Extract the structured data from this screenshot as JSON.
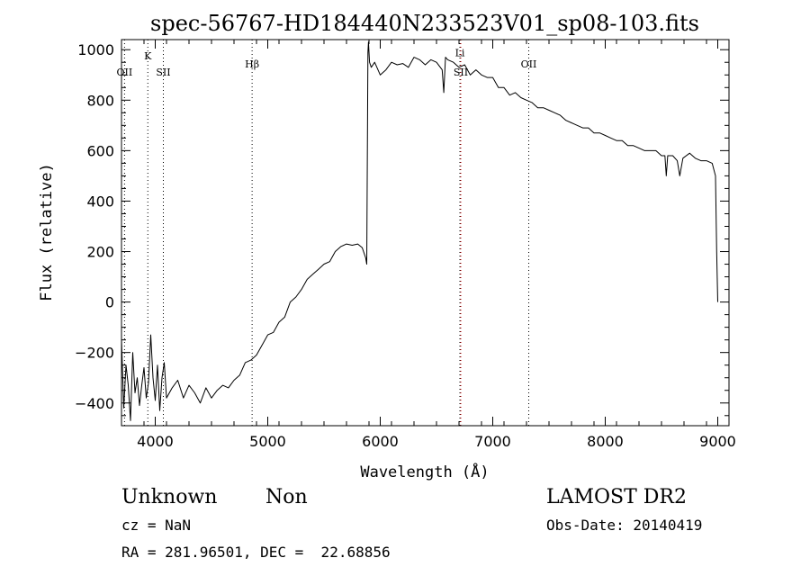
{
  "chart_data": {
    "type": "line",
    "title": "spec-56767-HD184440N233523V01_sp08-103.fits",
    "xlabel": "Wavelength (Å)",
    "ylabel": "Flux (relative)",
    "xlim": [
      3700,
      9100
    ],
    "ylim": [
      -490,
      1040
    ],
    "xticks": [
      4000,
      5000,
      6000,
      7000,
      8000,
      9000
    ],
    "yticks": [
      -400,
      -200,
      0,
      200,
      400,
      600,
      800,
      1000
    ],
    "ytick_labels": [
      "−400",
      "−200",
      "0",
      "200",
      "400",
      "600",
      "800",
      "1000"
    ],
    "grid": false,
    "series": [
      {
        "color": "#000000",
        "x": [
          3700,
          3720,
          3740,
          3760,
          3780,
          3800,
          3820,
          3840,
          3860,
          3880,
          3900,
          3920,
          3940,
          3960,
          3980,
          4000,
          4020,
          4040,
          4060,
          4080,
          4100,
          4150,
          4200,
          4250,
          4300,
          4350,
          4400,
          4450,
          4500,
          4550,
          4600,
          4650,
          4700,
          4750,
          4800,
          4850,
          4900,
          4950,
          5000,
          5050,
          5100,
          5150,
          5200,
          5250,
          5300,
          5350,
          5400,
          5450,
          5500,
          5550,
          5600,
          5650,
          5700,
          5750,
          5800,
          5840,
          5870,
          5880,
          5890,
          5895,
          5905,
          5920,
          5950,
          6000,
          6050,
          6100,
          6150,
          6200,
          6250,
          6300,
          6350,
          6400,
          6450,
          6500,
          6550,
          6565,
          6580,
          6600,
          6650,
          6700,
          6750,
          6800,
          6850,
          6900,
          6950,
          7000,
          7050,
          7100,
          7150,
          7200,
          7250,
          7300,
          7350,
          7400,
          7450,
          7500,
          7550,
          7600,
          7650,
          7700,
          7750,
          7800,
          7850,
          7900,
          7950,
          8000,
          8050,
          8100,
          8150,
          8200,
          8250,
          8300,
          8350,
          8400,
          8450,
          8500,
          8530,
          8542,
          8555,
          8600,
          8640,
          8662,
          8690,
          8750,
          8800,
          8850,
          8900,
          8950,
          8980,
          8990,
          9000
        ],
        "y": [
          -150,
          -420,
          -250,
          -330,
          -470,
          -200,
          -360,
          -300,
          -410,
          -330,
          -260,
          -380,
          -320,
          -130,
          -300,
          -390,
          -250,
          -430,
          -300,
          -240,
          -380,
          -340,
          -310,
          -380,
          -330,
          -360,
          -400,
          -340,
          -380,
          -350,
          -330,
          -340,
          -310,
          -290,
          -240,
          -230,
          -210,
          -170,
          -130,
          -120,
          -80,
          -60,
          0,
          20,
          50,
          90,
          110,
          130,
          150,
          160,
          200,
          220,
          230,
          225,
          230,
          215,
          175,
          150,
          990,
          1030,
          950,
          930,
          950,
          900,
          920,
          950,
          940,
          945,
          930,
          970,
          960,
          940,
          960,
          950,
          920,
          830,
          970,
          960,
          950,
          930,
          940,
          900,
          920,
          900,
          890,
          890,
          850,
          850,
          820,
          830,
          810,
          800,
          790,
          770,
          770,
          760,
          750,
          740,
          720,
          710,
          700,
          690,
          690,
          670,
          670,
          660,
          650,
          640,
          640,
          620,
          620,
          610,
          600,
          600,
          600,
          580,
          580,
          500,
          580,
          580,
          560,
          500,
          570,
          590,
          570,
          560,
          560,
          550,
          500,
          200,
          0
        ]
      }
    ],
    "line_markers": [
      {
        "label": "K",
        "x": 3934,
        "color": "#000000",
        "style": "dotted",
        "label_row": 1
      },
      {
        "label": "OII",
        "x": 3727,
        "color": "#000000",
        "style": "dotted",
        "label_row": 2
      },
      {
        "label": "SII",
        "x": 4072,
        "color": "#000000",
        "style": "dotted",
        "label_row": 2
      },
      {
        "label": "Hβ",
        "x": 4861,
        "color": "#000000",
        "style": "dotted",
        "label_row": 1.5
      },
      {
        "label": "Li",
        "x": 6708,
        "color": "#000000",
        "style": "dotted",
        "label_row": 0.8
      },
      {
        "label": "SII",
        "x": 6716,
        "color": "#cc0000",
        "style": "dotted",
        "label_row": 2
      },
      {
        "label": "OII",
        "x": 7320,
        "color": "#000000",
        "style": "dotted",
        "label_row": 1.5
      }
    ]
  },
  "info": {
    "class_label": "Unknown",
    "subclass_label": "Non",
    "survey_label": "LAMOST DR2",
    "cz_text": "cz = NaN",
    "obsdate_text": "Obs-Date: 20140419",
    "coords_text": "RA = 281.96501, DEC =  22.68856"
  }
}
